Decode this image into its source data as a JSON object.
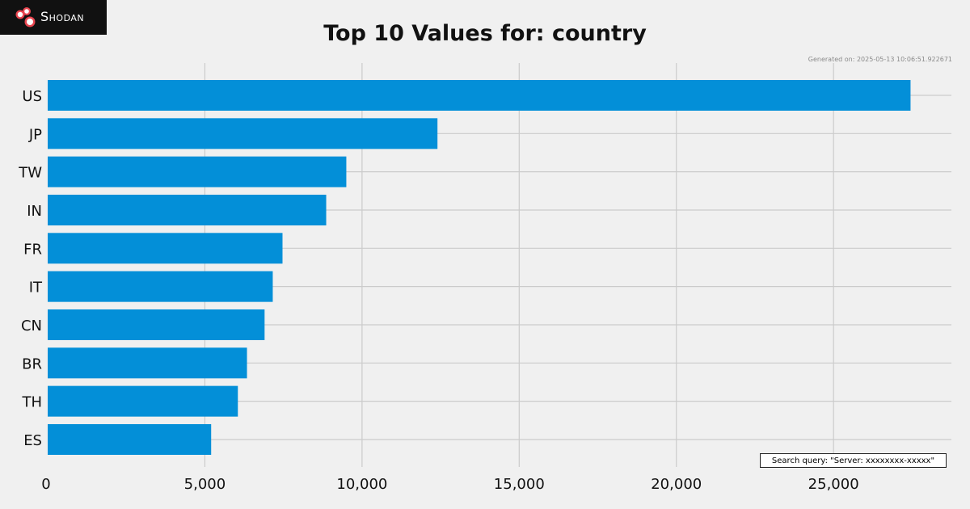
{
  "brand": {
    "name": "Shodan"
  },
  "header": {
    "generated": "Generated on: 2025-05-13 10:06:51.922671"
  },
  "footer": {
    "query": "Search query: \"Server: xxxxxxxx-xxxxx\""
  },
  "colors": {
    "bar": "#038fd8",
    "grid": "#cbcbcb",
    "background": "#f0f0f0",
    "logo_accent": "#e8454f"
  },
  "chart_data": {
    "type": "bar",
    "orientation": "horizontal",
    "title": "Top 10 Values for: country",
    "xlabel": "",
    "ylabel": "",
    "categories": [
      "US",
      "JP",
      "TW",
      "IN",
      "FR",
      "IT",
      "CN",
      "BR",
      "TH",
      "ES"
    ],
    "values": [
      27450,
      12400,
      9500,
      8860,
      7470,
      7160,
      6900,
      6340,
      6050,
      5200
    ],
    "xlim": [
      0,
      28750
    ],
    "xticks": [
      0,
      5000,
      10000,
      15000,
      20000,
      25000
    ],
    "xtick_labels": [
      "0",
      "5,000",
      "10,000",
      "15,000",
      "20,000",
      "25,000"
    ],
    "grid": true
  }
}
